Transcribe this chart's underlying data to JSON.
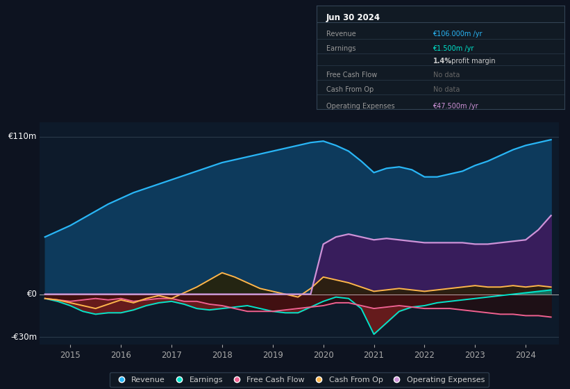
{
  "background_color": "#0d1320",
  "plot_bg_color": "#0d1a2a",
  "ylim": [
    -35,
    120
  ],
  "ylabel_top": "€110m",
  "ylabel_zero": "€0",
  "ylabel_bottom": "-€30m",
  "years": [
    2014.5,
    2014.75,
    2015.0,
    2015.25,
    2015.5,
    2015.75,
    2016.0,
    2016.25,
    2016.5,
    2016.75,
    2017.0,
    2017.25,
    2017.5,
    2017.75,
    2018.0,
    2018.25,
    2018.5,
    2018.75,
    2019.0,
    2019.25,
    2019.5,
    2019.75,
    2020.0,
    2020.25,
    2020.5,
    2020.75,
    2021.0,
    2021.25,
    2021.5,
    2021.75,
    2022.0,
    2022.25,
    2022.5,
    2022.75,
    2023.0,
    2023.25,
    2023.5,
    2023.75,
    2024.0,
    2024.25,
    2024.5
  ],
  "revenue": [
    40,
    44,
    48,
    53,
    58,
    63,
    67,
    71,
    74,
    77,
    80,
    83,
    86,
    89,
    92,
    94,
    96,
    98,
    100,
    102,
    104,
    106,
    107,
    104,
    100,
    93,
    85,
    88,
    89,
    87,
    82,
    82,
    84,
    86,
    90,
    93,
    97,
    101,
    104,
    106,
    108
  ],
  "earnings": [
    -3,
    -5,
    -8,
    -12,
    -14,
    -13,
    -13,
    -11,
    -8,
    -6,
    -5,
    -7,
    -10,
    -11,
    -10,
    -9,
    -8,
    -10,
    -12,
    -13,
    -13,
    -9,
    -5,
    -2,
    -3,
    -10,
    -28,
    -20,
    -12,
    -9,
    -8,
    -6,
    -5,
    -4,
    -3,
    -2,
    -1,
    0,
    1,
    2,
    3
  ],
  "free_cash_flow": [
    -3,
    -4,
    -5,
    -4,
    -3,
    -4,
    -3,
    -5,
    -4,
    -3,
    -3,
    -5,
    -5,
    -7,
    -8,
    -10,
    -12,
    -12,
    -12,
    -11,
    -10,
    -9,
    -8,
    -6,
    -6,
    -8,
    -10,
    -9,
    -8,
    -9,
    -10,
    -10,
    -10,
    -11,
    -12,
    -13,
    -14,
    -14,
    -15,
    -15,
    -16
  ],
  "cash_from_op": [
    -3,
    -4,
    -6,
    -8,
    -10,
    -7,
    -4,
    -6,
    -3,
    -1,
    -3,
    1,
    5,
    10,
    15,
    12,
    8,
    4,
    2,
    0,
    -2,
    4,
    12,
    10,
    8,
    5,
    2,
    3,
    4,
    3,
    2,
    3,
    4,
    5,
    6,
    5,
    5,
    6,
    5,
    6,
    5
  ],
  "op_expenses": [
    0,
    0,
    0,
    0,
    0,
    0,
    0,
    0,
    0,
    0,
    0,
    0,
    0,
    0,
    0,
    0,
    0,
    0,
    0,
    0,
    0,
    0,
    35,
    40,
    42,
    40,
    38,
    39,
    38,
    37,
    36,
    36,
    36,
    36,
    35,
    35,
    36,
    37,
    38,
    45,
    55
  ],
  "revenue_color": "#29b6f6",
  "revenue_fill": "#0d3a5c",
  "earnings_color": "#00e5cc",
  "earnings_fill_neg": "#6b1c1c",
  "free_cash_flow_color": "#f06292",
  "cash_from_op_color": "#ffb74d",
  "op_expenses_color": "#ce93d8",
  "op_expenses_fill": "#3d1a5c",
  "legend_items": [
    "Revenue",
    "Earnings",
    "Free Cash Flow",
    "Cash From Op",
    "Operating Expenses"
  ],
  "legend_colors": [
    "#29b6f6",
    "#00e5cc",
    "#f06292",
    "#ffb74d",
    "#ce93d8"
  ],
  "xlim": [
    2014.4,
    2024.65
  ],
  "xticks": [
    2015,
    2016,
    2017,
    2018,
    2019,
    2020,
    2021,
    2022,
    2023,
    2024
  ],
  "info_title": "Jun 30 2024",
  "info_rows": [
    {
      "label": "Revenue",
      "value": "€106.000m /yr",
      "color": "#29b6f6"
    },
    {
      "label": "Earnings",
      "value": "€1.500m /yr",
      "color": "#00e5cc"
    },
    {
      "label": "",
      "value": "1.4% profit margin",
      "color": "#cccccc"
    },
    {
      "label": "Free Cash Flow",
      "value": "No data",
      "color": "#666666"
    },
    {
      "label": "Cash From Op",
      "value": "No data",
      "color": "#666666"
    },
    {
      "label": "Operating Expenses",
      "value": "€47.500m /yr",
      "color": "#ce93d8"
    }
  ]
}
